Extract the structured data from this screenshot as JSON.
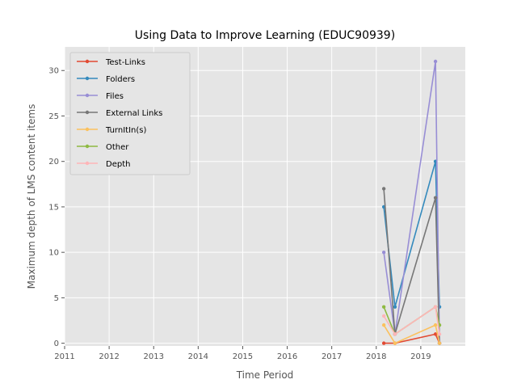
{
  "chart_data": {
    "type": "line",
    "title": "Using Data to Improve Learning (EDUC90939)",
    "xlabel": "Time Period",
    "ylabel": "Maximum depth of LMS content items",
    "xlim": [
      2011.0,
      2020.0
    ],
    "ylim": [
      -0.3,
      32.6
    ],
    "x_ticks": [
      "2011",
      "2012",
      "2013",
      "2014",
      "2015",
      "2016",
      "2017",
      "2018",
      "2019"
    ],
    "y_ticks": [
      "0",
      "5",
      "10",
      "15",
      "20",
      "25",
      "30"
    ],
    "grid": true,
    "legend_position": "top-left",
    "x": [
      2018.17,
      2018.42,
      2019.33,
      2019.42
    ],
    "series": [
      {
        "name": "Test-Links",
        "color": "#e24a33",
        "values": [
          0,
          0,
          1,
          0
        ]
      },
      {
        "name": "Folders",
        "color": "#348abd",
        "values": [
          15,
          4,
          20,
          4
        ]
      },
      {
        "name": "Files",
        "color": "#988ed5",
        "values": [
          10,
          1,
          31,
          0
        ]
      },
      {
        "name": "External Links",
        "color": "#777777",
        "values": [
          17,
          1,
          16,
          0
        ]
      },
      {
        "name": "TurnItIn(s)",
        "color": "#fbc15e",
        "values": [
          2,
          0,
          2,
          0
        ]
      },
      {
        "name": "Other",
        "color": "#8eba42",
        "values": [
          4,
          1,
          4,
          2
        ]
      },
      {
        "name": "Depth",
        "color": "#ffb5b8",
        "values": [
          3,
          1,
          4,
          1
        ]
      }
    ]
  }
}
